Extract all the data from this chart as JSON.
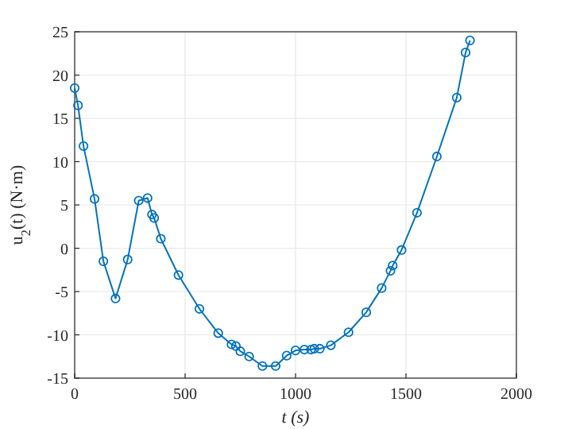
{
  "chart_data": {
    "type": "line",
    "xlabel": "t (s)",
    "ylabel": "u$_{2}$(t) (N·m)",
    "x": [
      0,
      15,
      40,
      90,
      130,
      185,
      240,
      290,
      330,
      350,
      360,
      390,
      470,
      565,
      650,
      710,
      730,
      750,
      790,
      850,
      910,
      960,
      1000,
      1040,
      1070,
      1085,
      1110,
      1160,
      1240,
      1320,
      1390,
      1430,
      1440,
      1480,
      1550,
      1640,
      1730,
      1770,
      1790
    ],
    "series": [
      {
        "color": "#0072bd",
        "values": [
          18.5,
          16.5,
          11.8,
          5.7,
          -1.5,
          -5.8,
          -1.3,
          5.5,
          5.8,
          3.9,
          3.5,
          1.1,
          -3.1,
          -7,
          -9.8,
          -11.1,
          -11.3,
          -11.9,
          -12.5,
          -13.6,
          -13.6,
          -12.4,
          -11.8,
          -11.7,
          -11.7,
          -11.6,
          -11.6,
          -11.2,
          -9.7,
          -7.4,
          -4.6,
          -2.6,
          -2,
          -0.2,
          4.1,
          10.6,
          17.4,
          22.6,
          24
        ]
      }
    ],
    "xlim": [
      0,
      2000
    ],
    "xticks": [
      0,
      500,
      1000,
      1500,
      2000
    ],
    "ylim": [
      -15,
      25
    ],
    "yticks": [
      -15,
      -10,
      -5,
      0,
      5,
      10,
      15,
      20,
      25
    ],
    "grid": true,
    "marker": "circle",
    "line_style": "solid"
  }
}
